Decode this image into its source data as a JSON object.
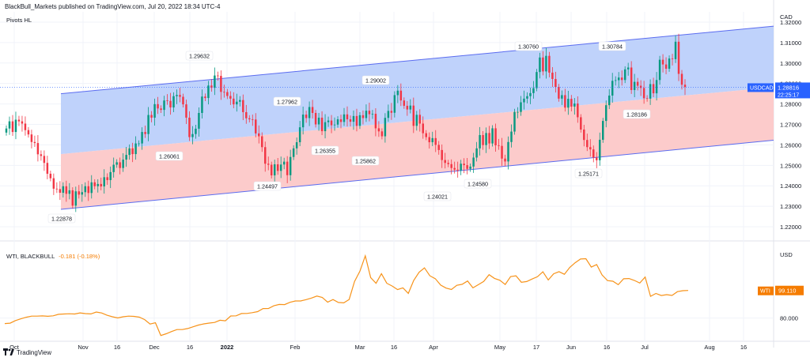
{
  "header": {
    "title": "BlackBull_Markets published on TradingView.com, Jul 20, 2022 18:34 UTC-4"
  },
  "footer": {
    "brand": "TradingView"
  },
  "colors": {
    "up": "#089981",
    "down": "#f23645",
    "upper_band": "#bcd0fb",
    "lower_band": "#fcc8c8",
    "channel_line": "#5b6cf0",
    "wti_line": "#f7931a",
    "price_badge": "#2962ff",
    "wti_badge": "#f57c00",
    "grid": "#f0f3fa"
  },
  "chart_data": [
    {
      "type": "candlestick",
      "symbol": "USDCAD",
      "indicator": "Pivots HL",
      "currency": "CAD",
      "last_price": "1.28816",
      "countdown": "22:25:17",
      "y_ticks": [
        "1.32000",
        "1.31000",
        "1.30000",
        "1.29000",
        "1.28000",
        "1.27000",
        "1.26000",
        "1.25000",
        "1.24000",
        "1.23000",
        "1.22000"
      ],
      "ylim": [
        1.215,
        1.325
      ],
      "x_ticks": [
        "Oct",
        "Nov",
        "16",
        "Dec",
        "16",
        "2022",
        "Feb",
        "Mar",
        "16",
        "Apr",
        "May",
        "17",
        "Jun",
        "16",
        "Jul",
        "Aug",
        "16"
      ],
      "pivots": [
        {
          "label": "1.22878",
          "kind": "low"
        },
        {
          "label": "1.26061",
          "kind": "low"
        },
        {
          "label": "1.29632",
          "kind": "high"
        },
        {
          "label": "1.24497",
          "kind": "low"
        },
        {
          "label": "1.27962",
          "kind": "high"
        },
        {
          "label": "1.26355",
          "kind": "low"
        },
        {
          "label": "1.29002",
          "kind": "high"
        },
        {
          "label": "1.25862",
          "kind": "low"
        },
        {
          "label": "1.24021",
          "kind": "low"
        },
        {
          "label": "1.24580",
          "kind": "low"
        },
        {
          "label": "1.30760",
          "kind": "high"
        },
        {
          "label": "1.25171",
          "kind": "low"
        },
        {
          "label": "1.30784",
          "kind": "high"
        },
        {
          "label": "1.28186",
          "kind": "low"
        }
      ],
      "channel": {
        "upper": [
          [
            0,
            1.285
          ],
          [
            1,
            1.318
          ]
        ],
        "middle": [
          [
            0,
            1.2555
          ],
          [
            1,
            1.2882
          ]
        ],
        "lower": [
          [
            0,
            1.2285
          ],
          [
            1,
            1.2623
          ]
        ]
      },
      "closes": [
        1.268,
        1.2715,
        1.2663,
        1.2723,
        1.2715,
        1.2704,
        1.2672,
        1.2651,
        1.2614,
        1.2609,
        1.2554,
        1.2546,
        1.2512,
        1.2459,
        1.2437,
        1.2386,
        1.2384,
        1.2366,
        1.2398,
        1.2361,
        1.2378,
        1.2303,
        1.2373,
        1.2357,
        1.2369,
        1.2398,
        1.2365,
        1.2417,
        1.2398,
        1.2409,
        1.2397,
        1.2442,
        1.2428,
        1.2467,
        1.2503,
        1.2515,
        1.2487,
        1.2528,
        1.2551,
        1.2583,
        1.2555,
        1.2607,
        1.2607,
        1.2663,
        1.2653,
        1.2746,
        1.2733,
        1.2799,
        1.2778,
        1.2771,
        1.2817,
        1.2815,
        1.2783,
        1.2838,
        1.2844,
        1.2835,
        1.2798,
        1.2733,
        1.2638,
        1.2653,
        1.2679,
        1.2756,
        1.2836,
        1.2829,
        1.289,
        1.2879,
        1.2939,
        1.2937,
        1.2859,
        1.2858,
        1.2839,
        1.2826,
        1.2798,
        1.2811,
        1.2819,
        1.276,
        1.273,
        1.2725,
        1.2724,
        1.2656,
        1.2642,
        1.2589,
        1.2508,
        1.2503,
        1.2451,
        1.2505,
        1.2473,
        1.2504,
        1.2518,
        1.2452,
        1.2541,
        1.2583,
        1.2613,
        1.2686,
        1.2748,
        1.2731,
        1.2785,
        1.2756,
        1.27,
        1.2733,
        1.2667,
        1.2711,
        1.2719,
        1.2696,
        1.2699,
        1.2725,
        1.2712,
        1.2749,
        1.2725,
        1.2713,
        1.2741,
        1.2693,
        1.2745,
        1.2731,
        1.2767,
        1.275,
        1.2752,
        1.2681,
        1.2666,
        1.2642,
        1.2732,
        1.2766,
        1.2757,
        1.2843,
        1.2865,
        1.2817,
        1.2791,
        1.2773,
        1.2792,
        1.2693,
        1.2747,
        1.2704,
        1.2657,
        1.2638,
        1.2613,
        1.2633,
        1.26,
        1.2575,
        1.2526,
        1.2512,
        1.2506,
        1.2487,
        1.2479,
        1.2475,
        1.2508,
        1.2501,
        1.2483,
        1.2494,
        1.2538,
        1.2583,
        1.2648,
        1.2599,
        1.2658,
        1.2607,
        1.2681,
        1.2598,
        1.2595,
        1.2533,
        1.2519,
        1.2614,
        1.2665,
        1.2761,
        1.2761,
        1.2808,
        1.2826,
        1.2838,
        1.2853,
        1.2877,
        1.2956,
        1.3027,
        1.2959,
        1.3035,
        1.2953,
        1.2922,
        1.2883,
        1.2826,
        1.2843,
        1.2782,
        1.2825,
        1.2787,
        1.2802,
        1.2735,
        1.2675,
        1.2624,
        1.2589,
        1.2578,
        1.2538,
        1.2525,
        1.2625,
        1.2717,
        1.2794,
        1.2841,
        1.2913,
        1.2916,
        1.2929,
        1.2917,
        1.2969,
        1.2978,
        1.2868,
        1.2908,
        1.2889,
        1.2878,
        1.2828,
        1.2826,
        1.2897,
        1.2852,
        1.2917,
        1.3016,
        1.2993,
        1.2972,
        1.3022,
        1.3019,
        1.3104,
        1.2947,
        1.2894,
        1.2883
      ]
    },
    {
      "type": "line",
      "name": "WTI, BLACKBULL",
      "change": "-0.181 (-0.18%)",
      "currency": "USD",
      "last_price": "99.110",
      "badge_label": "WTI",
      "y_ticks": [
        "80.000"
      ],
      "ylim": [
        65,
        128
      ],
      "values": [
        76.2,
        76.47,
        78.24,
        79.47,
        80.58,
        81.31,
        81.33,
        81.5,
        81.24,
        81.53,
        82.59,
        82.8,
        82.98,
        82.81,
        83.55,
        83.09,
        82.86,
        84.18,
        83.49,
        81.91,
        80.9,
        80.09,
        80.86,
        81.3,
        81.16,
        80.64,
        78.89,
        75.82,
        76.7,
        67.91,
        69.12,
        70.62,
        72.02,
        71.99,
        72.72,
        73.95,
        75.14,
        75.98,
        76.51,
        76.94,
        78.49,
        78.12,
        81.46,
        81.55,
        83.11,
        83.21,
        83.76,
        84.43,
        86.6,
        86.64,
        88.48,
        89.46,
        89.35,
        90.92,
        91.83,
        91.87,
        92.79,
        93.86,
        95.25,
        94.31,
        91.02,
        92.85,
        90.78,
        90.51,
        92.88,
        105.36,
        112.49,
        123.17,
        108.05,
        104.13,
        110.77,
        104.1,
        102.18,
        99.71,
        100.96,
        97.08,
        106.06,
        111.73,
        114.79,
        109.31,
        107.3,
        102.86,
        100.79,
        99.81,
        102.7,
        103.4,
        105.69,
        100.96,
        103.13,
        105.4,
        110.08,
        107.49,
        106.18,
        103.27,
        108.71,
        109.32,
        104.8,
        105.34,
        107.06,
        108.64,
        112.06,
        106.39,
        110.68,
        112.17,
        110.38,
        115.1,
        118.35,
        120.93,
        121.13,
        115.34,
        117.08,
        109.94,
        105.99,
        105.52,
        103.15,
        107.23,
        107.39,
        106.11,
        104.26,
        108.46,
        95.07,
        97.03,
        95.64,
        96.23,
        95.67,
        98.32,
        98.94,
        99.11
      ]
    }
  ]
}
